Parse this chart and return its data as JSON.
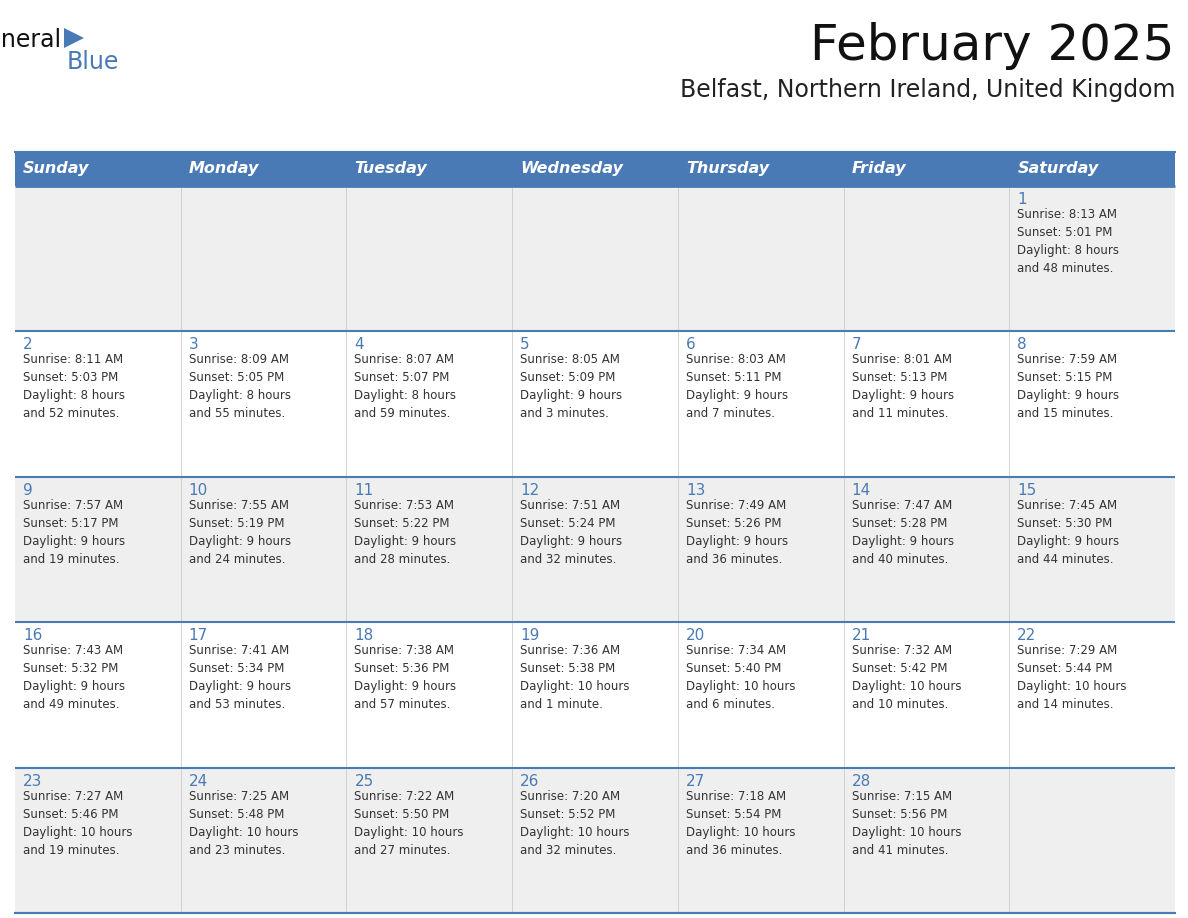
{
  "title": "February 2025",
  "subtitle": "Belfast, Northern Ireland, United Kingdom",
  "header_color": "#4a7ab5",
  "header_text_color": "#ffffff",
  "cell_bg_week1": "#efefef",
  "cell_bg_week2": "#ffffff",
  "day_number_color": "#4a7ab5",
  "text_color": "#333333",
  "line_color": "#4a7ab5",
  "logo_general_color": "#222222",
  "logo_blue_color": "#4a7ab5",
  "logo_triangle_color": "#4a7ab5",
  "days_of_week": [
    "Sunday",
    "Monday",
    "Tuesday",
    "Wednesday",
    "Thursday",
    "Friday",
    "Saturday"
  ],
  "weeks": [
    [
      {
        "day": null,
        "info": null
      },
      {
        "day": null,
        "info": null
      },
      {
        "day": null,
        "info": null
      },
      {
        "day": null,
        "info": null
      },
      {
        "day": null,
        "info": null
      },
      {
        "day": null,
        "info": null
      },
      {
        "day": 1,
        "info": "Sunrise: 8:13 AM\nSunset: 5:01 PM\nDaylight: 8 hours\nand 48 minutes."
      }
    ],
    [
      {
        "day": 2,
        "info": "Sunrise: 8:11 AM\nSunset: 5:03 PM\nDaylight: 8 hours\nand 52 minutes."
      },
      {
        "day": 3,
        "info": "Sunrise: 8:09 AM\nSunset: 5:05 PM\nDaylight: 8 hours\nand 55 minutes."
      },
      {
        "day": 4,
        "info": "Sunrise: 8:07 AM\nSunset: 5:07 PM\nDaylight: 8 hours\nand 59 minutes."
      },
      {
        "day": 5,
        "info": "Sunrise: 8:05 AM\nSunset: 5:09 PM\nDaylight: 9 hours\nand 3 minutes."
      },
      {
        "day": 6,
        "info": "Sunrise: 8:03 AM\nSunset: 5:11 PM\nDaylight: 9 hours\nand 7 minutes."
      },
      {
        "day": 7,
        "info": "Sunrise: 8:01 AM\nSunset: 5:13 PM\nDaylight: 9 hours\nand 11 minutes."
      },
      {
        "day": 8,
        "info": "Sunrise: 7:59 AM\nSunset: 5:15 PM\nDaylight: 9 hours\nand 15 minutes."
      }
    ],
    [
      {
        "day": 9,
        "info": "Sunrise: 7:57 AM\nSunset: 5:17 PM\nDaylight: 9 hours\nand 19 minutes."
      },
      {
        "day": 10,
        "info": "Sunrise: 7:55 AM\nSunset: 5:19 PM\nDaylight: 9 hours\nand 24 minutes."
      },
      {
        "day": 11,
        "info": "Sunrise: 7:53 AM\nSunset: 5:22 PM\nDaylight: 9 hours\nand 28 minutes."
      },
      {
        "day": 12,
        "info": "Sunrise: 7:51 AM\nSunset: 5:24 PM\nDaylight: 9 hours\nand 32 minutes."
      },
      {
        "day": 13,
        "info": "Sunrise: 7:49 AM\nSunset: 5:26 PM\nDaylight: 9 hours\nand 36 minutes."
      },
      {
        "day": 14,
        "info": "Sunrise: 7:47 AM\nSunset: 5:28 PM\nDaylight: 9 hours\nand 40 minutes."
      },
      {
        "day": 15,
        "info": "Sunrise: 7:45 AM\nSunset: 5:30 PM\nDaylight: 9 hours\nand 44 minutes."
      }
    ],
    [
      {
        "day": 16,
        "info": "Sunrise: 7:43 AM\nSunset: 5:32 PM\nDaylight: 9 hours\nand 49 minutes."
      },
      {
        "day": 17,
        "info": "Sunrise: 7:41 AM\nSunset: 5:34 PM\nDaylight: 9 hours\nand 53 minutes."
      },
      {
        "day": 18,
        "info": "Sunrise: 7:38 AM\nSunset: 5:36 PM\nDaylight: 9 hours\nand 57 minutes."
      },
      {
        "day": 19,
        "info": "Sunrise: 7:36 AM\nSunset: 5:38 PM\nDaylight: 10 hours\nand 1 minute."
      },
      {
        "day": 20,
        "info": "Sunrise: 7:34 AM\nSunset: 5:40 PM\nDaylight: 10 hours\nand 6 minutes."
      },
      {
        "day": 21,
        "info": "Sunrise: 7:32 AM\nSunset: 5:42 PM\nDaylight: 10 hours\nand 10 minutes."
      },
      {
        "day": 22,
        "info": "Sunrise: 7:29 AM\nSunset: 5:44 PM\nDaylight: 10 hours\nand 14 minutes."
      }
    ],
    [
      {
        "day": 23,
        "info": "Sunrise: 7:27 AM\nSunset: 5:46 PM\nDaylight: 10 hours\nand 19 minutes."
      },
      {
        "day": 24,
        "info": "Sunrise: 7:25 AM\nSunset: 5:48 PM\nDaylight: 10 hours\nand 23 minutes."
      },
      {
        "day": 25,
        "info": "Sunrise: 7:22 AM\nSunset: 5:50 PM\nDaylight: 10 hours\nand 27 minutes."
      },
      {
        "day": 26,
        "info": "Sunrise: 7:20 AM\nSunset: 5:52 PM\nDaylight: 10 hours\nand 32 minutes."
      },
      {
        "day": 27,
        "info": "Sunrise: 7:18 AM\nSunset: 5:54 PM\nDaylight: 10 hours\nand 36 minutes."
      },
      {
        "day": 28,
        "info": "Sunrise: 7:15 AM\nSunset: 5:56 PM\nDaylight: 10 hours\nand 41 minutes."
      },
      {
        "day": null,
        "info": null
      }
    ]
  ]
}
